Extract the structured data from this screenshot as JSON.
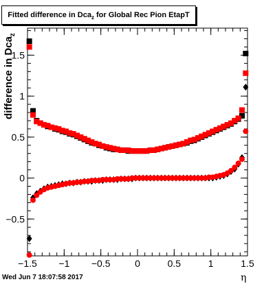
{
  "chart_data": {
    "type": "scatter",
    "title": "Fitted difference in Dca",
    "title_sub": "z",
    "title_rest": " for Global Rec Pion EtapT",
    "xlabel": "η",
    "ylabel": "difference in Dca",
    "ylabel_sub": "z",
    "xlim": [
      -1.5,
      1.5
    ],
    "ylim": [
      -0.95,
      1.83
    ],
    "x_ticks": [
      -1.5,
      -1,
      -0.5,
      0,
      0.5,
      1,
      1.5
    ],
    "x_tick_labels": [
      "−1.5",
      "−1",
      "−0.5",
      "0",
      "0.5",
      "1",
      "1.5"
    ],
    "y_ticks": [
      -0.5,
      0,
      0.5,
      1,
      1.5
    ],
    "y_tick_labels": [
      "−0.5",
      "0",
      "0.5",
      "1",
      "1.5"
    ],
    "grid": false,
    "colors": {
      "black": "#000000",
      "red": "#ff0000"
    },
    "series": [
      {
        "marker": "square",
        "color": "#000000",
        "x": [
          -1.475,
          -1.425,
          -1.375,
          -1.325,
          -1.275,
          -1.225,
          -1.175,
          -1.125,
          -1.075,
          -1.025,
          -0.975,
          -0.925,
          -0.875,
          -0.825,
          -0.775,
          -0.725,
          -0.675,
          -0.625,
          -0.575,
          -0.525,
          -0.475,
          -0.425,
          -0.375,
          -0.325,
          -0.275,
          -0.225,
          -0.175,
          -0.125,
          -0.075,
          -0.025,
          0.025,
          0.075,
          0.125,
          0.175,
          0.225,
          0.275,
          0.325,
          0.375,
          0.425,
          0.475,
          0.525,
          0.575,
          0.625,
          0.675,
          0.725,
          0.775,
          0.825,
          0.875,
          0.925,
          0.975,
          1.025,
          1.075,
          1.125,
          1.175,
          1.225,
          1.275,
          1.325,
          1.375,
          1.425,
          1.475
        ],
        "y": [
          1.67,
          0.82,
          0.7,
          0.67,
          0.65,
          0.63,
          0.62,
          0.6,
          0.59,
          0.57,
          0.56,
          0.54,
          0.53,
          0.51,
          0.49,
          0.47,
          0.45,
          0.43,
          0.42,
          0.4,
          0.39,
          0.37,
          0.36,
          0.35,
          0.35,
          0.34,
          0.34,
          0.33,
          0.33,
          0.33,
          0.33,
          0.33,
          0.33,
          0.34,
          0.34,
          0.35,
          0.36,
          0.37,
          0.38,
          0.39,
          0.4,
          0.41,
          0.42,
          0.43,
          0.45,
          0.46,
          0.48,
          0.5,
          0.52,
          0.54,
          0.56,
          0.58,
          0.6,
          0.62,
          0.64,
          0.66,
          0.69,
          0.72,
          0.76,
          1.52
        ]
      },
      {
        "marker": "square",
        "color": "#ff0000",
        "x": [
          -1.475,
          -1.425,
          -1.375,
          -1.325,
          -1.275,
          -1.225,
          -1.175,
          -1.125,
          -1.075,
          -1.025,
          -0.975,
          -0.925,
          -0.875,
          -0.825,
          -0.775,
          -0.725,
          -0.675,
          -0.625,
          -0.575,
          -0.525,
          -0.475,
          -0.425,
          -0.375,
          -0.325,
          -0.275,
          -0.225,
          -0.175,
          -0.125,
          -0.075,
          -0.025,
          0.025,
          0.075,
          0.125,
          0.175,
          0.225,
          0.275,
          0.325,
          0.375,
          0.425,
          0.475,
          0.525,
          0.575,
          0.625,
          0.675,
          0.725,
          0.775,
          0.825,
          0.875,
          0.925,
          0.975,
          1.025,
          1.075,
          1.125,
          1.175,
          1.225,
          1.275,
          1.325,
          1.375,
          1.425,
          1.475
        ],
        "y": [
          1.6,
          0.77,
          0.69,
          0.67,
          0.65,
          0.64,
          0.62,
          0.61,
          0.6,
          0.58,
          0.57,
          0.55,
          0.54,
          0.52,
          0.5,
          0.48,
          0.46,
          0.44,
          0.42,
          0.41,
          0.39,
          0.38,
          0.37,
          0.36,
          0.35,
          0.34,
          0.34,
          0.34,
          0.33,
          0.33,
          0.33,
          0.33,
          0.33,
          0.34,
          0.34,
          0.35,
          0.36,
          0.37,
          0.38,
          0.39,
          0.4,
          0.41,
          0.42,
          0.44,
          0.46,
          0.47,
          0.49,
          0.51,
          0.53,
          0.55,
          0.57,
          0.59,
          0.61,
          0.63,
          0.65,
          0.67,
          0.7,
          0.73,
          0.83,
          1.28
        ]
      },
      {
        "marker": "diamond",
        "color": "#000000",
        "x": [
          -1.475,
          -1.425,
          -1.375,
          -1.325,
          -1.275,
          -1.225,
          -1.175,
          -1.125,
          -1.075,
          -1.025,
          -0.975,
          -0.925,
          -0.875,
          -0.825,
          -0.775,
          -0.725,
          -0.675,
          -0.625,
          -0.575,
          -0.525,
          -0.475,
          -0.425,
          -0.375,
          -0.325,
          -0.275,
          -0.225,
          -0.175,
          -0.125,
          -0.075,
          -0.025,
          0.025,
          0.075,
          0.125,
          0.175,
          0.225,
          0.275,
          0.325,
          0.375,
          0.425,
          0.475,
          0.525,
          0.575,
          0.625,
          0.675,
          0.725,
          0.775,
          0.825,
          0.875,
          0.925,
          0.975,
          1.025,
          1.075,
          1.125,
          1.175,
          1.225,
          1.275,
          1.325,
          1.375,
          1.425,
          1.475
        ],
        "y": [
          -0.74,
          -0.24,
          -0.19,
          -0.16,
          -0.13,
          -0.11,
          -0.1,
          -0.09,
          -0.08,
          -0.07,
          -0.07,
          -0.06,
          -0.06,
          -0.05,
          -0.05,
          -0.04,
          -0.04,
          -0.04,
          -0.03,
          -0.03,
          -0.03,
          -0.02,
          -0.02,
          -0.02,
          -0.02,
          -0.01,
          -0.01,
          -0.01,
          -0.01,
          0.0,
          0.0,
          0.0,
          0.0,
          0.0,
          0.0,
          0.0,
          0.0,
          0.0,
          0.0,
          0.0,
          0.0,
          0.0,
          0.0,
          0.0,
          0.0,
          0.0,
          0.0,
          0.0,
          0.0,
          0.0,
          0.0,
          0.01,
          0.02,
          0.03,
          0.05,
          0.08,
          0.11,
          0.17,
          0.25,
          1.11
        ]
      },
      {
        "marker": "circle",
        "color": "#ff0000",
        "x": [
          -1.475,
          -1.425,
          -1.375,
          -1.325,
          -1.275,
          -1.225,
          -1.175,
          -1.125,
          -1.075,
          -1.025,
          -0.975,
          -0.925,
          -0.875,
          -0.825,
          -0.775,
          -0.725,
          -0.675,
          -0.625,
          -0.575,
          -0.525,
          -0.475,
          -0.425,
          -0.375,
          -0.325,
          -0.275,
          -0.225,
          -0.175,
          -0.125,
          -0.075,
          -0.025,
          0.025,
          0.075,
          0.125,
          0.175,
          0.225,
          0.275,
          0.325,
          0.375,
          0.425,
          0.475,
          0.525,
          0.575,
          0.625,
          0.675,
          0.725,
          0.775,
          0.825,
          0.875,
          0.925,
          0.975,
          1.025,
          1.075,
          1.125,
          1.175,
          1.225,
          1.275,
          1.325,
          1.375,
          1.425,
          1.475
        ],
        "y": [
          -0.94,
          -0.27,
          -0.21,
          -0.17,
          -0.14,
          -0.12,
          -0.11,
          -0.1,
          -0.09,
          -0.08,
          -0.07,
          -0.06,
          -0.06,
          -0.05,
          -0.05,
          -0.04,
          -0.04,
          -0.03,
          -0.03,
          -0.03,
          -0.02,
          -0.02,
          -0.02,
          -0.02,
          -0.01,
          -0.01,
          -0.01,
          -0.01,
          0.0,
          0.0,
          0.0,
          0.0,
          0.0,
          0.0,
          0.0,
          0.0,
          0.0,
          0.0,
          0.0,
          0.0,
          0.0,
          0.0,
          0.0,
          0.0,
          0.0,
          0.0,
          0.0,
          0.0,
          0.0,
          0.01,
          0.01,
          0.02,
          0.03,
          0.04,
          0.06,
          0.09,
          0.13,
          0.18,
          0.23,
          0.57
        ]
      }
    ]
  },
  "footer": {
    "timestamp": "Wed Jun  7 18:07:58 2017"
  }
}
